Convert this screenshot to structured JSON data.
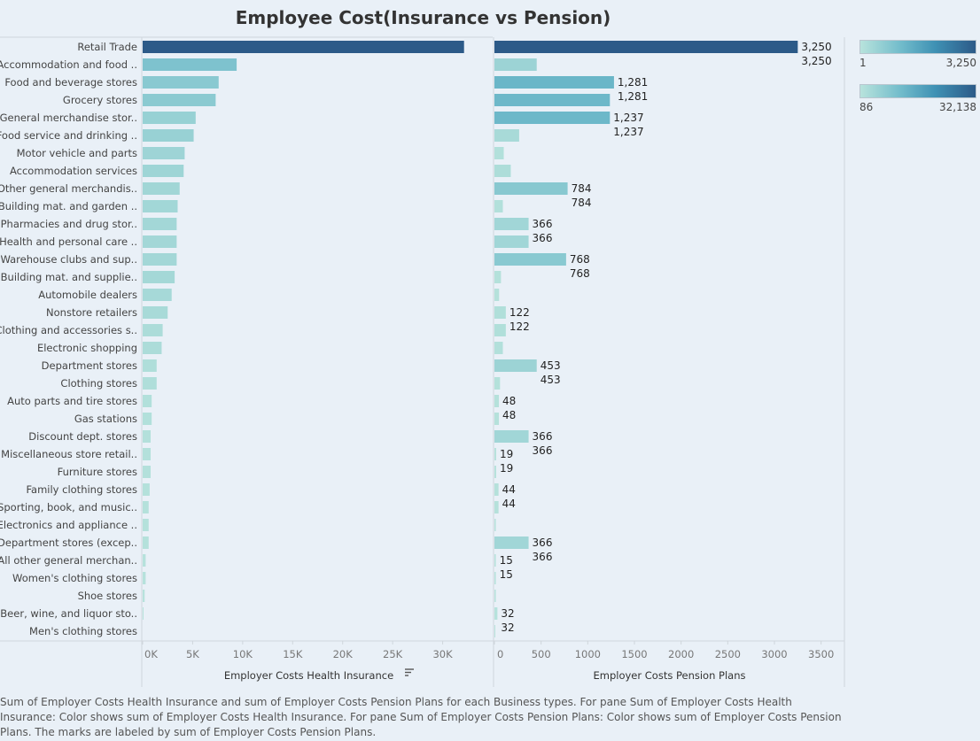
{
  "title": "Employee Cost(Insurance vs Pension)",
  "caption": "Sum of Employer Costs Health Insurance and sum of Employer Costs Pension Plans for each Business types.  For pane Sum of Employer Costs Health Insurance:  Color shows sum of Employer Costs Health Insurance.  For pane Sum of Employer Costs Pension Plans:  Color shows sum of Employer Costs Pension Plans.  The marks are labeled by sum of Employer Costs Pension Plans.",
  "legends": [
    {
      "min": "1",
      "max": "3,250"
    },
    {
      "min": "86",
      "max": "32,138"
    }
  ],
  "sort_icon": "sort-descending-icon",
  "chart_data": {
    "type": "bar",
    "orientation": "horizontal",
    "categories": [
      "Retail Trade",
      "Accommodation and food ..",
      "Food and beverage stores",
      "Grocery stores",
      "General merchandise stor..",
      "Food service and drinking ..",
      "Motor vehicle and parts",
      "Accommodation services",
      "Other general merchandis..",
      "Building mat. and garden ..",
      "Pharmacies and drug stor..",
      "Health and personal care ..",
      "Warehouse clubs and sup..",
      "Building mat. and supplie..",
      "Automobile dealers",
      "Nonstore retailers",
      "Clothing and accessories s..",
      "Electronic shopping",
      "Department stores",
      "Clothing stores",
      "Auto parts and tire stores",
      "Gas stations",
      "Discount dept. stores",
      "Miscellaneous store retail..",
      "Furniture stores",
      "Family clothing stores",
      "Sporting, book, and  music..",
      "Electronics and appliance ..",
      "Department stores (excep..",
      "All other general merchan..",
      "Women's clothing stores",
      "Shoe stores",
      "Beer, wine, and liquor sto..",
      "Men's clothing stores"
    ],
    "series": [
      {
        "name": "Employer Costs Health Insurance",
        "values": [
          32138,
          9400,
          7600,
          7300,
          5300,
          5100,
          4200,
          4100,
          3700,
          3500,
          3400,
          3400,
          3400,
          3200,
          2900,
          2500,
          2000,
          1900,
          1400,
          1400,
          900,
          900,
          800,
          800,
          800,
          700,
          600,
          600,
          600,
          300,
          300,
          200,
          86,
          0
        ],
        "xlim": [
          0,
          35000
        ],
        "ticks": [
          "0K",
          "5K",
          "10K",
          "15K",
          "20K",
          "25K",
          "30K"
        ],
        "tick_values": [
          0,
          5000,
          10000,
          15000,
          20000,
          25000,
          30000
        ],
        "xlabel": "Employer Costs Health Insurance"
      },
      {
        "name": "Employer Costs Pension Plans",
        "values": [
          3250,
          453,
          1281,
          1237,
          1237,
          265,
          100,
          175,
          784,
          90,
          366,
          366,
          768,
          70,
          50,
          122,
          122,
          90,
          453,
          60,
          48,
          48,
          366,
          19,
          19,
          44,
          44,
          15,
          366,
          15,
          15,
          15,
          32,
          1
        ],
        "labels": [
          "3,250",
          "",
          "1,281",
          "",
          "1,237",
          "",
          "",
          "",
          "784",
          "",
          "366",
          "",
          "768",
          "",
          "",
          "122",
          "",
          "",
          "453",
          "",
          "48",
          "",
          "366",
          "19",
          "",
          "44",
          "",
          "",
          "366",
          "15",
          "",
          "",
          "32",
          ""
        ],
        "xlim": [
          0,
          3750
        ],
        "ticks": [
          "0",
          "500",
          "1000",
          "1500",
          "2000",
          "2500",
          "3000",
          "3500"
        ],
        "tick_values": [
          0,
          500,
          1000,
          1500,
          2000,
          2500,
          3000,
          3500
        ],
        "xlabel": "Employer Costs Pension Plans"
      }
    ]
  }
}
